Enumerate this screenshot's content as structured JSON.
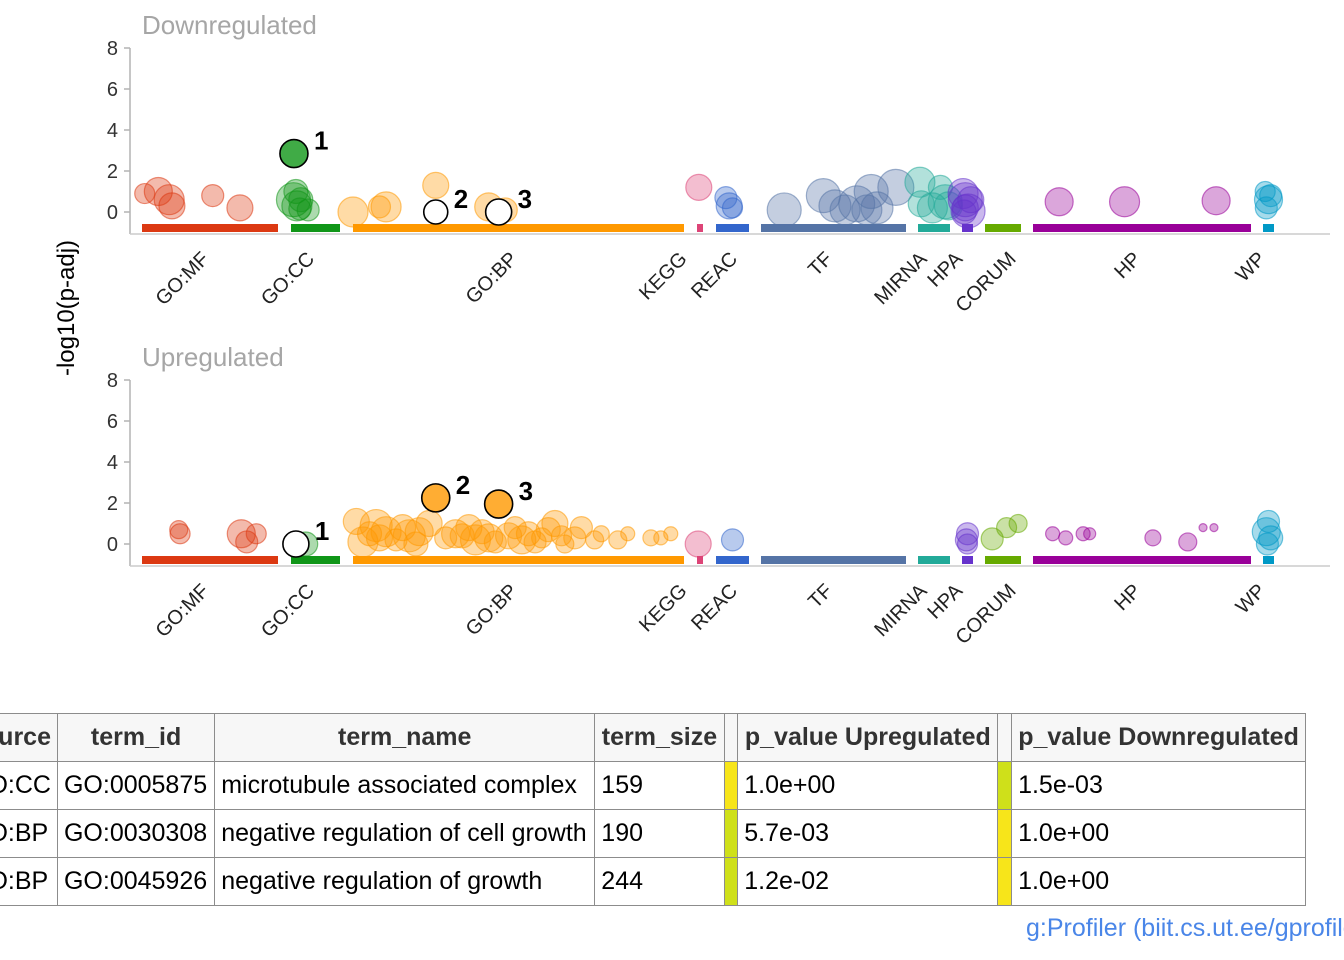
{
  "chart_data": {
    "type": "scatter",
    "ylabel": "-log10(p-adj)",
    "ylim": [
      0,
      8
    ],
    "yticks": [
      0,
      2,
      4,
      6,
      8
    ],
    "sources": [
      {
        "name": "GO:MF",
        "color": "#dc3912"
      },
      {
        "name": "GO:CC",
        "color": "#109618"
      },
      {
        "name": "GO:BP",
        "color": "#ff9900"
      },
      {
        "name": "KEGG",
        "color": "#dd4477"
      },
      {
        "name": "REAC",
        "color": "#3366cc"
      },
      {
        "name": "TF",
        "color": "#5574a6"
      },
      {
        "name": "MIRNA",
        "color": "#22aa99"
      },
      {
        "name": "HPA",
        "color": "#6633cc"
      },
      {
        "name": "CORUM",
        "color": "#66aa00"
      },
      {
        "name": "HP",
        "color": "#990099"
      },
      {
        "name": "WP",
        "color": "#0099c6"
      }
    ],
    "panels": [
      {
        "title": "Downregulated",
        "points": [
          {
            "source": "GO:MF",
            "rel": 0.02,
            "y": 0.9,
            "size": 20
          },
          {
            "source": "GO:MF",
            "rel": 0.12,
            "y": 1.0,
            "size": 28
          },
          {
            "source": "GO:MF",
            "rel": 0.2,
            "y": 0.6,
            "size": 30
          },
          {
            "source": "GO:MF",
            "rel": 0.22,
            "y": 0.3,
            "size": 26
          },
          {
            "source": "GO:MF",
            "rel": 0.52,
            "y": 0.8,
            "size": 22
          },
          {
            "source": "GO:MF",
            "rel": 0.72,
            "y": 0.2,
            "size": 26
          },
          {
            "source": "GO:CC",
            "rel": 0.06,
            "y": 2.85,
            "size": 28,
            "hl": 1
          },
          {
            "source": "GO:CC",
            "rel": 0.05,
            "y": 0.6,
            "size": 34
          },
          {
            "source": "GO:CC",
            "rel": 0.1,
            "y": 1.0,
            "size": 24
          },
          {
            "source": "GO:CC",
            "rel": 0.12,
            "y": 0.3,
            "size": 30
          },
          {
            "source": "GO:CC",
            "rel": 0.2,
            "y": 0.6,
            "size": 24
          },
          {
            "source": "GO:CC",
            "rel": 0.18,
            "y": 0.15,
            "size": 22
          },
          {
            "source": "GO:CC",
            "rel": 0.35,
            "y": 0.1,
            "size": 22
          },
          {
            "source": "GO:BP",
            "rel": 0.25,
            "y": 1.3,
            "size": 26
          },
          {
            "source": "GO:BP",
            "rel": 0.25,
            "y": 0.0,
            "size": 24,
            "hl": 2
          },
          {
            "source": "GO:BP",
            "rel": 0.44,
            "y": 0.0,
            "size": 26,
            "hl": 3
          },
          {
            "source": "GO:BP",
            "rel": 0.0,
            "y": 0.0,
            "size": 30
          },
          {
            "source": "GO:BP",
            "rel": 0.08,
            "y": 0.25,
            "size": 22
          },
          {
            "source": "GO:BP",
            "rel": 0.1,
            "y": 0.25,
            "size": 30
          },
          {
            "source": "GO:BP",
            "rel": 0.41,
            "y": 0.25,
            "size": 28
          },
          {
            "source": "GO:BP",
            "rel": 0.46,
            "y": 0.1,
            "size": 24
          },
          {
            "source": "KEGG",
            "rel": 0.3,
            "y": 1.2,
            "size": 26
          },
          {
            "source": "REAC",
            "rel": 0.3,
            "y": 0.7,
            "size": 22
          },
          {
            "source": "REAC",
            "rel": 0.4,
            "y": 0.3,
            "size": 26
          },
          {
            "source": "REAC",
            "rel": 0.5,
            "y": 0.2,
            "size": 20
          },
          {
            "source": "TF",
            "rel": 0.16,
            "y": 0.1,
            "size": 34
          },
          {
            "source": "TF",
            "rel": 0.43,
            "y": 0.8,
            "size": 34
          },
          {
            "source": "TF",
            "rel": 0.51,
            "y": 0.3,
            "size": 32
          },
          {
            "source": "TF",
            "rel": 0.58,
            "y": 0.1,
            "size": 30
          },
          {
            "source": "TF",
            "rel": 0.66,
            "y": 0.4,
            "size": 36
          },
          {
            "source": "TF",
            "rel": 0.73,
            "y": 0.1,
            "size": 30
          },
          {
            "source": "TF",
            "rel": 0.76,
            "y": 1.0,
            "size": 34
          },
          {
            "source": "TF",
            "rel": 0.8,
            "y": 0.2,
            "size": 32
          },
          {
            "source": "TF",
            "rel": 0.93,
            "y": 1.2,
            "size": 36
          },
          {
            "source": "MIRNA",
            "rel": 0.06,
            "y": 1.45,
            "size": 30
          },
          {
            "source": "MIRNA",
            "rel": 0.1,
            "y": 0.4,
            "size": 26
          },
          {
            "source": "MIRNA",
            "rel": 0.45,
            "y": 0.2,
            "size": 30
          },
          {
            "source": "MIRNA",
            "rel": 0.7,
            "y": 1.2,
            "size": 24
          },
          {
            "source": "MIRNA",
            "rel": 0.85,
            "y": 0.5,
            "size": 34
          },
          {
            "source": "MIRNA",
            "rel": 0.95,
            "y": 0.3,
            "size": 28
          },
          {
            "source": "HPA",
            "rel": 0.1,
            "y": 0.9,
            "size": 30
          },
          {
            "source": "HPA",
            "rel": 0.3,
            "y": 0.6,
            "size": 34
          },
          {
            "source": "HPA",
            "rel": 0.3,
            "y": 0.2,
            "size": 26
          },
          {
            "source": "HPA",
            "rel": 0.55,
            "y": 0.05,
            "size": 34
          },
          {
            "source": "HPA",
            "rel": 0.8,
            "y": 0.6,
            "size": 26
          },
          {
            "source": "HPA",
            "rel": 0.2,
            "y": 0.0,
            "size": 24
          },
          {
            "source": "HP",
            "rel": 0.12,
            "y": 0.5,
            "size": 28
          },
          {
            "source": "HP",
            "rel": 0.42,
            "y": 0.5,
            "size": 30
          },
          {
            "source": "HP",
            "rel": 0.84,
            "y": 0.55,
            "size": 28
          },
          {
            "source": "WP",
            "rel": 0.2,
            "y": 1.0,
            "size": 20
          },
          {
            "source": "WP",
            "rel": 0.5,
            "y": 0.6,
            "size": 28
          },
          {
            "source": "WP",
            "rel": 0.3,
            "y": 0.2,
            "size": 22
          },
          {
            "source": "WP",
            "rel": 0.7,
            "y": 0.8,
            "size": 22
          }
        ]
      },
      {
        "title": "Upregulated",
        "points": [
          {
            "source": "GO:MF",
            "rel": 0.27,
            "y": 0.7,
            "size": 18
          },
          {
            "source": "GO:MF",
            "rel": 0.28,
            "y": 0.5,
            "size": 20
          },
          {
            "source": "GO:MF",
            "rel": 0.73,
            "y": 0.5,
            "size": 28
          },
          {
            "source": "GO:MF",
            "rel": 0.77,
            "y": 0.1,
            "size": 22
          },
          {
            "source": "GO:MF",
            "rel": 0.84,
            "y": 0.5,
            "size": 20
          },
          {
            "source": "GO:CC",
            "rel": 0.1,
            "y": 0.0,
            "size": 26,
            "hl": 1
          },
          {
            "source": "GO:CC",
            "rel": 0.3,
            "y": 0.0,
            "size": 24
          },
          {
            "source": "GO:BP",
            "rel": 0.25,
            "y": 2.25,
            "size": 28,
            "hl": 2
          },
          {
            "source": "GO:BP",
            "rel": 0.44,
            "y": 1.95,
            "size": 28,
            "hl": 3
          },
          {
            "source": "GO:BP",
            "rel": 0.01,
            "y": 1.1,
            "size": 26
          },
          {
            "source": "GO:BP",
            "rel": 0.03,
            "y": 0.1,
            "size": 30
          },
          {
            "source": "GO:BP",
            "rel": 0.05,
            "y": 0.5,
            "size": 24
          },
          {
            "source": "GO:BP",
            "rel": 0.07,
            "y": 0.9,
            "size": 32
          },
          {
            "source": "GO:BP",
            "rel": 0.08,
            "y": 0.3,
            "size": 26
          },
          {
            "source": "GO:BP",
            "rel": 0.1,
            "y": 0.6,
            "size": 30
          },
          {
            "source": "GO:BP",
            "rel": 0.13,
            "y": 0.2,
            "size": 22
          },
          {
            "source": "GO:BP",
            "rel": 0.15,
            "y": 0.8,
            "size": 26
          },
          {
            "source": "GO:BP",
            "rel": 0.17,
            "y": 0.4,
            "size": 32
          },
          {
            "source": "GO:BP",
            "rel": 0.19,
            "y": 0.0,
            "size": 24
          },
          {
            "source": "GO:BP",
            "rel": 0.2,
            "y": 0.6,
            "size": 28
          },
          {
            "source": "GO:BP",
            "rel": 0.23,
            "y": 1.0,
            "size": 26
          },
          {
            "source": "GO:BP",
            "rel": 0.28,
            "y": 0.3,
            "size": 22
          },
          {
            "source": "GO:BP",
            "rel": 0.31,
            "y": 0.5,
            "size": 28
          },
          {
            "source": "GO:BP",
            "rel": 0.33,
            "y": 0.4,
            "size": 24
          },
          {
            "source": "GO:BP",
            "rel": 0.35,
            "y": 0.8,
            "size": 26
          },
          {
            "source": "GO:BP",
            "rel": 0.37,
            "y": 0.2,
            "size": 30
          },
          {
            "source": "GO:BP",
            "rel": 0.39,
            "y": 0.6,
            "size": 24
          },
          {
            "source": "GO:BP",
            "rel": 0.41,
            "y": 0.3,
            "size": 28
          },
          {
            "source": "GO:BP",
            "rel": 0.43,
            "y": 0.1,
            "size": 22
          },
          {
            "source": "GO:BP",
            "rel": 0.47,
            "y": 0.4,
            "size": 26
          },
          {
            "source": "GO:BP",
            "rel": 0.49,
            "y": 0.8,
            "size": 22
          },
          {
            "source": "GO:BP",
            "rel": 0.51,
            "y": 0.2,
            "size": 28
          },
          {
            "source": "GO:BP",
            "rel": 0.53,
            "y": 0.5,
            "size": 24
          },
          {
            "source": "GO:BP",
            "rel": 0.55,
            "y": 0.1,
            "size": 22
          },
          {
            "source": "GO:BP",
            "rel": 0.57,
            "y": 0.3,
            "size": 20
          },
          {
            "source": "GO:BP",
            "rel": 0.59,
            "y": 0.7,
            "size": 24
          },
          {
            "source": "GO:BP",
            "rel": 0.61,
            "y": 1.0,
            "size": 26
          },
          {
            "source": "GO:BP",
            "rel": 0.63,
            "y": 0.4,
            "size": 20
          },
          {
            "source": "GO:BP",
            "rel": 0.64,
            "y": 0.0,
            "size": 18
          },
          {
            "source": "GO:BP",
            "rel": 0.67,
            "y": 0.3,
            "size": 22
          },
          {
            "source": "GO:BP",
            "rel": 0.69,
            "y": 0.8,
            "size": 22
          },
          {
            "source": "GO:BP",
            "rel": 0.73,
            "y": 0.2,
            "size": 18
          },
          {
            "source": "GO:BP",
            "rel": 0.75,
            "y": 0.5,
            "size": 16
          },
          {
            "source": "GO:BP",
            "rel": 0.8,
            "y": 0.2,
            "size": 18
          },
          {
            "source": "GO:BP",
            "rel": 0.83,
            "y": 0.5,
            "size": 14
          },
          {
            "source": "GO:BP",
            "rel": 0.9,
            "y": 0.3,
            "size": 16
          },
          {
            "source": "GO:BP",
            "rel": 0.93,
            "y": 0.3,
            "size": 14
          },
          {
            "source": "GO:BP",
            "rel": 0.96,
            "y": 0.5,
            "size": 14
          },
          {
            "source": "KEGG",
            "rel": 0.2,
            "y": 0.0,
            "size": 26
          },
          {
            "source": "REAC",
            "rel": 0.5,
            "y": 0.2,
            "size": 22
          },
          {
            "source": "HPA",
            "rel": 0.4,
            "y": 0.2,
            "size": 22
          },
          {
            "source": "HPA",
            "rel": 0.5,
            "y": 0.5,
            "size": 22
          },
          {
            "source": "HPA",
            "rel": 0.5,
            "y": 0.0,
            "size": 20
          },
          {
            "source": "CORUM",
            "rel": 0.2,
            "y": 0.25,
            "size": 22
          },
          {
            "source": "CORUM",
            "rel": 0.6,
            "y": 0.8,
            "size": 20
          },
          {
            "source": "CORUM",
            "rel": 0.92,
            "y": 1.0,
            "size": 18
          },
          {
            "source": "HP",
            "rel": 0.09,
            "y": 0.5,
            "size": 14
          },
          {
            "source": "HP",
            "rel": 0.15,
            "y": 0.3,
            "size": 14
          },
          {
            "source": "HP",
            "rel": 0.23,
            "y": 0.5,
            "size": 14
          },
          {
            "source": "HP",
            "rel": 0.26,
            "y": 0.5,
            "size": 12
          },
          {
            "source": "HP",
            "rel": 0.55,
            "y": 0.3,
            "size": 16
          },
          {
            "source": "HP",
            "rel": 0.71,
            "y": 0.1,
            "size": 18
          },
          {
            "source": "HP",
            "rel": 0.78,
            "y": 0.8,
            "size": 8
          },
          {
            "source": "HP",
            "rel": 0.83,
            "y": 0.8,
            "size": 8
          },
          {
            "source": "WP",
            "rel": 0.3,
            "y": 0.6,
            "size": 28
          },
          {
            "source": "WP",
            "rel": 0.5,
            "y": 1.1,
            "size": 22
          },
          {
            "source": "WP",
            "rel": 0.7,
            "y": 0.3,
            "size": 24
          },
          {
            "source": "WP",
            "rel": 0.4,
            "y": 0.0,
            "size": 22
          }
        ]
      }
    ],
    "highlight_labels": [
      "1",
      "2",
      "3"
    ]
  },
  "table": {
    "columns": [
      "source",
      "term_id",
      "term_name",
      "term_size",
      "",
      "p_value Upregulated",
      "",
      "p_value Downregulated"
    ],
    "rows": [
      {
        "source": "GO:CC",
        "term_id": "GO:0005875",
        "term_name": "microtubule associated complex",
        "term_size": "159",
        "up_color": "#f7e51a",
        "p_up": "1.0e+00",
        "down_color": "#cfe01a",
        "p_down": "1.5e-03"
      },
      {
        "source": "GO:BP",
        "term_id": "GO:0030308",
        "term_name": "negative regulation of cell growth",
        "term_size": "190",
        "up_color": "#cfe01a",
        "p_up": "5.7e-03",
        "down_color": "#f7e51a",
        "p_down": "1.0e+00"
      },
      {
        "source": "GO:BP",
        "term_id": "GO:0045926",
        "term_name": "negative regulation of growth",
        "term_size": "244",
        "up_color": "#cfe01a",
        "p_up": "1.2e-02",
        "down_color": "#f7e51a",
        "p_down": "1.0e+00"
      }
    ]
  },
  "footer": "g:Profiler (biit.cs.ut.ee/gprofiler)"
}
